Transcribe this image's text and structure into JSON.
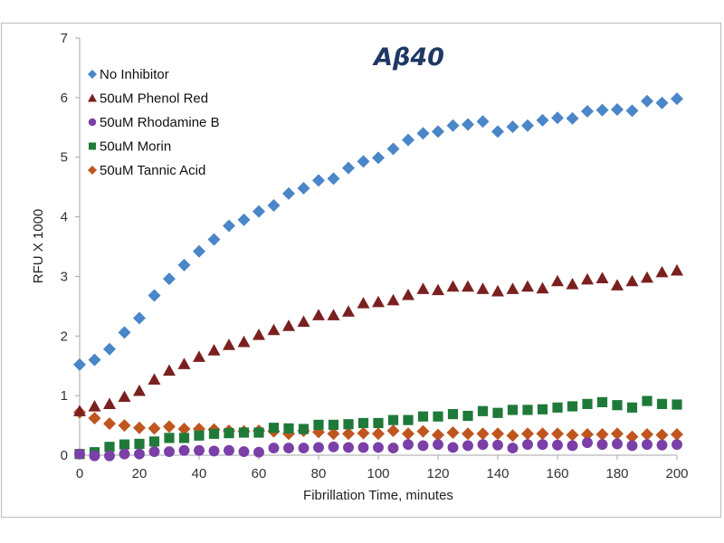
{
  "chart_data": {
    "type": "scatter",
    "title": "Aβ40",
    "xlabel": "Fibrillation Time, minutes",
    "ylabel": "RFU X 1000",
    "xlim": [
      0,
      200
    ],
    "ylim": [
      0,
      7
    ],
    "xticks": [
      0,
      20,
      40,
      60,
      80,
      100,
      120,
      140,
      160,
      180,
      200
    ],
    "yticks": [
      0,
      1,
      2,
      3,
      4,
      5,
      6,
      7
    ],
    "grid": false,
    "legend_position": "top-left",
    "x": [
      0,
      5,
      10,
      15,
      20,
      25,
      30,
      35,
      40,
      45,
      50,
      55,
      60,
      65,
      70,
      75,
      80,
      85,
      90,
      95,
      100,
      105,
      110,
      115,
      120,
      125,
      130,
      135,
      140,
      145,
      150,
      155,
      160,
      165,
      170,
      175,
      180,
      185,
      190,
      195,
      200
    ],
    "series": [
      {
        "name": "No Inhibitor",
        "marker": "diamond",
        "color": "#4a86c8",
        "values": [
          1.52,
          1.6,
          1.78,
          2.06,
          2.3,
          2.68,
          2.96,
          3.19,
          3.42,
          3.62,
          3.85,
          3.95,
          4.09,
          4.19,
          4.39,
          4.48,
          4.61,
          4.64,
          4.82,
          4.93,
          4.99,
          5.14,
          5.29,
          5.4,
          5.43,
          5.53,
          5.55,
          5.6,
          5.43,
          5.51,
          5.53,
          5.62,
          5.66,
          5.65,
          5.77,
          5.79,
          5.8,
          5.78,
          5.94,
          5.91,
          5.98
        ]
      },
      {
        "name": "50uM Phenol Red",
        "marker": "triangle",
        "color": "#7b2020",
        "values": [
          0.74,
          0.82,
          0.86,
          0.98,
          1.08,
          1.27,
          1.42,
          1.53,
          1.65,
          1.76,
          1.85,
          1.9,
          2.02,
          2.1,
          2.17,
          2.24,
          2.35,
          2.35,
          2.41,
          2.55,
          2.57,
          2.6,
          2.69,
          2.79,
          2.77,
          2.83,
          2.83,
          2.79,
          2.75,
          2.79,
          2.83,
          2.8,
          2.92,
          2.87,
          2.95,
          2.97,
          2.85,
          2.92,
          2.98,
          3.07,
          3.1
        ]
      },
      {
        "name": "50uM Rhodamine B",
        "marker": "circle",
        "color": "#7b3fa8",
        "values": [
          0.02,
          -0.01,
          -0.01,
          0.02,
          0.02,
          0.06,
          0.06,
          0.08,
          0.08,
          0.07,
          0.08,
          0.06,
          0.05,
          0.12,
          0.12,
          0.12,
          0.13,
          0.14,
          0.13,
          0.13,
          0.13,
          0.12,
          0.18,
          0.16,
          0.18,
          0.13,
          0.16,
          0.18,
          0.17,
          0.12,
          0.18,
          0.18,
          0.17,
          0.16,
          0.21,
          0.18,
          0.19,
          0.16,
          0.18,
          0.17,
          0.18
        ]
      },
      {
        "name": "50uM Morin",
        "marker": "square",
        "color": "#1f7a3a",
        "values": [
          0.02,
          0.05,
          0.14,
          0.18,
          0.19,
          0.23,
          0.29,
          0.29,
          0.33,
          0.36,
          0.37,
          0.38,
          0.38,
          0.46,
          0.45,
          0.44,
          0.51,
          0.51,
          0.52,
          0.54,
          0.54,
          0.59,
          0.59,
          0.65,
          0.65,
          0.69,
          0.66,
          0.74,
          0.71,
          0.76,
          0.76,
          0.77,
          0.8,
          0.82,
          0.86,
          0.89,
          0.84,
          0.8,
          0.91,
          0.86,
          0.85
        ]
      },
      {
        "name": "50uM Tannic Acid",
        "marker": "diamond",
        "color": "#c0561f",
        "values": [
          0.72,
          0.62,
          0.53,
          0.5,
          0.46,
          0.45,
          0.48,
          0.44,
          0.44,
          0.43,
          0.41,
          0.4,
          0.41,
          0.4,
          0.36,
          0.41,
          0.39,
          0.36,
          0.36,
          0.37,
          0.36,
          0.41,
          0.36,
          0.4,
          0.34,
          0.38,
          0.36,
          0.36,
          0.36,
          0.33,
          0.36,
          0.36,
          0.36,
          0.34,
          0.35,
          0.35,
          0.36,
          0.31,
          0.35,
          0.34,
          0.35
        ]
      }
    ]
  }
}
